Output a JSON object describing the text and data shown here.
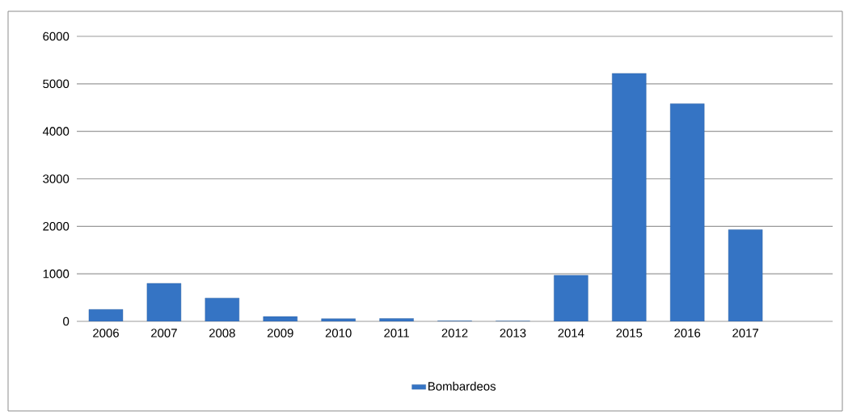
{
  "chart_data": {
    "type": "bar",
    "categories": [
      "2006",
      "2007",
      "2008",
      "2009",
      "2010",
      "2011",
      "2012",
      "2013",
      "2014",
      "2015",
      "2016",
      "2017",
      null
    ],
    "series": [
      {
        "name": "Bombardeos",
        "color": "#3574c4",
        "values": [
          250,
          800,
          490,
          100,
          55,
          60,
          10,
          5,
          970,
          5220,
          4580,
          1930,
          null
        ]
      }
    ],
    "ylim": [
      0,
      6000
    ],
    "yticks": [
      0,
      1000,
      2000,
      3000,
      4000,
      5000,
      6000
    ],
    "grid": "y",
    "legend": "bottom"
  }
}
